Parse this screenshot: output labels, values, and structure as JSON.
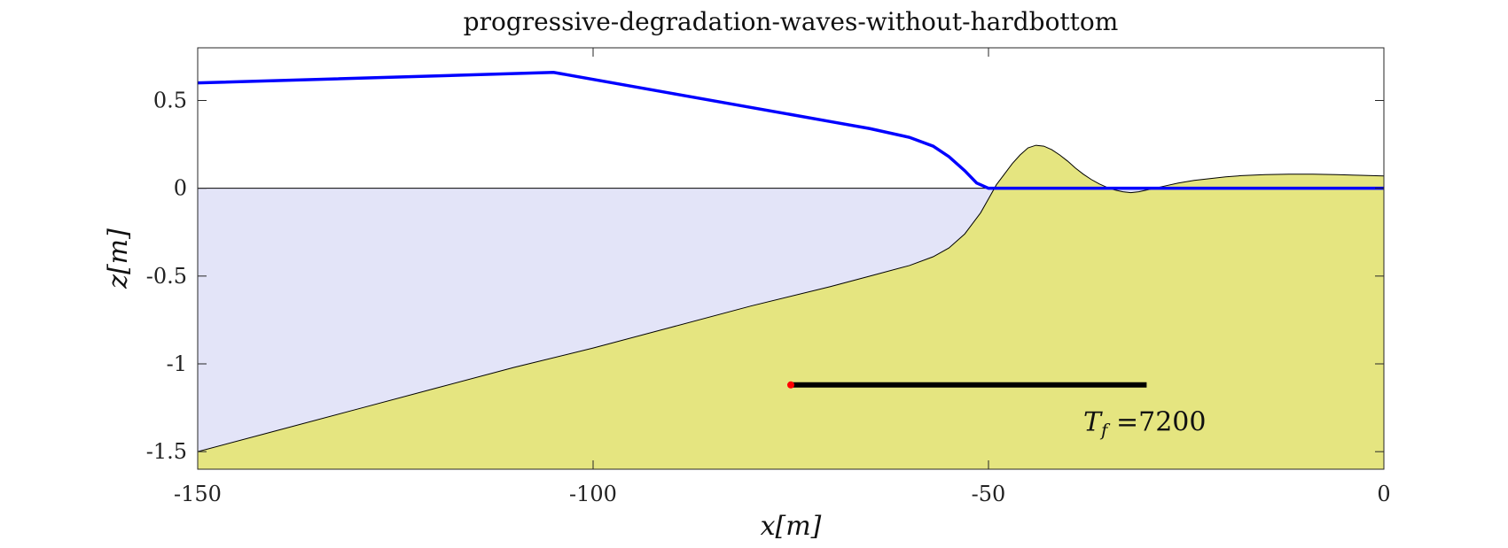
{
  "chart_data": {
    "type": "area",
    "title": "progressive-degradation-waves-without-hardbottom",
    "xlabel": "x[m]",
    "ylabel": "z[m]",
    "xlim": [
      -150,
      0
    ],
    "ylim": [
      -1.6,
      0.8
    ],
    "xticks": [
      -150,
      -100,
      -50,
      0
    ],
    "xtick_labels": [
      "-150",
      "-100",
      "-50",
      "0"
    ],
    "yticks": [
      0.5,
      0,
      -0.5,
      -1,
      -1.5
    ],
    "ytick_labels": [
      "0.5",
      "0",
      "-0.5",
      "-1",
      "-1.5"
    ],
    "grid": false,
    "colors": {
      "water": "#e3e4f8",
      "sand": "#e5e580",
      "water_line": "#0000ff",
      "bed_line": "#000000",
      "time_bar": "#000000",
      "marker": "#ff0000"
    },
    "series": [
      {
        "kind": "bed",
        "x": [
          -150,
          -140,
          -130,
          -120,
          -110,
          -100,
          -90,
          -80,
          -70,
          -65,
          -60,
          -57,
          -55,
          -53,
          -51,
          -50,
          -49,
          -48,
          -47,
          -46,
          -45,
          -44,
          -43,
          -42,
          -41,
          -40,
          -39,
          -38,
          -37,
          -36,
          -35,
          -34,
          -33,
          -32,
          -31,
          -30,
          -28,
          -26,
          -24,
          -22,
          -20,
          -18,
          -15,
          -12,
          -9,
          -6,
          -3,
          0
        ],
        "y": [
          -1.5,
          -1.38,
          -1.26,
          -1.14,
          -1.02,
          -0.91,
          -0.79,
          -0.67,
          -0.56,
          -0.5,
          -0.44,
          -0.39,
          -0.34,
          -0.26,
          -0.14,
          -0.06,
          0.02,
          0.08,
          0.14,
          0.19,
          0.23,
          0.245,
          0.24,
          0.22,
          0.19,
          0.155,
          0.115,
          0.08,
          0.05,
          0.025,
          0.005,
          -0.01,
          -0.02,
          -0.025,
          -0.02,
          -0.01,
          0.01,
          0.03,
          0.045,
          0.055,
          0.065,
          0.072,
          0.078,
          0.08,
          0.08,
          0.078,
          0.074,
          0.07
        ]
      },
      {
        "kind": "water-surface",
        "x": [
          -150,
          -105,
          -90,
          -80,
          -70,
          -65,
          -60,
          -57,
          -55,
          -53,
          -51.5,
          -50,
          -48,
          -45,
          -40,
          -35,
          -30,
          -20,
          -10,
          0
        ],
        "y": [
          0.6,
          0.66,
          0.54,
          0.46,
          0.38,
          0.34,
          0.29,
          0.24,
          0.18,
          0.1,
          0.03,
          0.0,
          0.0,
          0.0,
          0.0,
          0.0,
          0.0,
          0.0,
          0.0,
          0.0
        ]
      }
    ],
    "time_bar": {
      "x_start": -75,
      "x_end": -30,
      "y": -1.12,
      "progress": 1.0
    },
    "annotation": {
      "text_main": "T",
      "text_sub": "f",
      "text_value": " =7200",
      "x": -38,
      "y": -1.38
    }
  }
}
